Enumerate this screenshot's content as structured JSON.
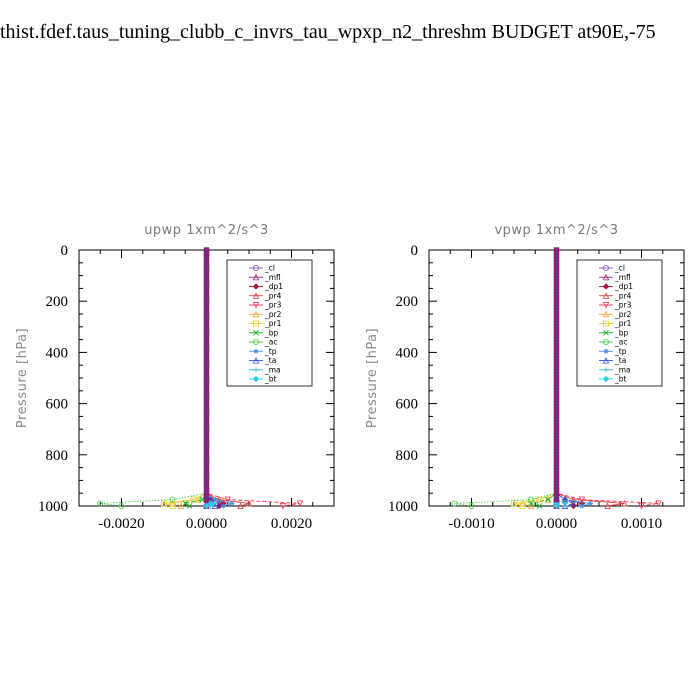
{
  "page_title": "thist.fdef.taus_tuning_clubb_c_invrs_tau_wpxp_n2_threshm  BUDGET at90E,-75",
  "legend": [
    "_cl",
    "_mfl",
    "_dp1",
    "_pr4",
    "_pr3",
    "_pr2",
    "_pr1",
    "_bp",
    "_ac",
    "_tp",
    "_ta",
    "_ma",
    "_bt"
  ],
  "series_colors": [
    "#8050b0",
    "#a01a7d",
    "#b0103a",
    "#e03c3c",
    "#ff3050",
    "#ffa030",
    "#f0d020",
    "#20b020",
    "#40d040",
    "#4090e0",
    "#3050e0",
    "#30c0e0",
    "#20d0e8"
  ],
  "chart_data": [
    {
      "type": "line",
      "title": "upwp   1xm^2/s^3",
      "ylabel": "Pressure  [hPa]",
      "xlabel": "",
      "xlim": [
        -0.003,
        0.003
      ],
      "ylim": [
        1000,
        0
      ],
      "x_ticks": [
        "-0.0020",
        "0.0000",
        "0.0020"
      ],
      "y_ticks": [
        "0",
        "200",
        "400",
        "600",
        "800",
        "1000"
      ],
      "series": [
        {
          "name": "_cl",
          "x": [
            0,
            0,
            0.0,
            0.0001,
            0.0
          ],
          "y": [
            0,
            950,
            975,
            990,
            1000
          ]
        },
        {
          "name": "_mfl",
          "x": [
            0,
            0,
            0.0,
            0.0,
            0.0
          ],
          "y": [
            0,
            950,
            975,
            990,
            1000
          ]
        },
        {
          "name": "_dp1",
          "x": [
            0,
            0,
            0.0001,
            0.0004,
            0.0003
          ],
          "y": [
            0,
            950,
            975,
            990,
            1000
          ]
        },
        {
          "name": "_pr4",
          "x": [
            0,
            0,
            0.0003,
            0.001,
            0.0008
          ],
          "y": [
            0,
            950,
            975,
            990,
            1000
          ]
        },
        {
          "name": "_pr3",
          "x": [
            0,
            0,
            0.0005,
            0.0022,
            0.0018
          ],
          "y": [
            0,
            950,
            975,
            990,
            1000
          ]
        },
        {
          "name": "_pr2",
          "x": [
            0,
            0,
            -0.0002,
            -0.0008,
            -0.0006
          ],
          "y": [
            0,
            950,
            975,
            990,
            1000
          ]
        },
        {
          "name": "_pr1",
          "x": [
            0,
            0,
            -0.0003,
            -0.001,
            -0.0008
          ],
          "y": [
            0,
            950,
            975,
            990,
            1000
          ]
        },
        {
          "name": "_bp",
          "x": [
            0,
            0,
            -0.0001,
            -0.0005,
            -0.0004
          ],
          "y": [
            0,
            950,
            975,
            990,
            1000
          ]
        },
        {
          "name": "_ac",
          "x": [
            0,
            0,
            -0.0008,
            -0.0025,
            -0.002
          ],
          "y": [
            0,
            950,
            975,
            990,
            1000
          ]
        },
        {
          "name": "_tp",
          "x": [
            0,
            0,
            0.0002,
            0.0006,
            0.0004
          ],
          "y": [
            0,
            950,
            975,
            990,
            1000
          ]
        },
        {
          "name": "_ta",
          "x": [
            0,
            0,
            0.0001,
            0.0003,
            0.0002
          ],
          "y": [
            0,
            950,
            975,
            990,
            1000
          ]
        },
        {
          "name": "_ma",
          "x": [
            0,
            0,
            0.0,
            0.0002,
            0.0001
          ],
          "y": [
            0,
            950,
            975,
            990,
            1000
          ]
        },
        {
          "name": "_bt",
          "x": [
            0,
            0,
            0.0,
            0.0001,
            0.0
          ],
          "y": [
            0,
            950,
            975,
            990,
            1000
          ]
        }
      ]
    },
    {
      "type": "line",
      "title": "vpwp   1xm^2/s^3",
      "ylabel": "Pressure  [hPa]",
      "xlabel": "",
      "xlim": [
        -0.0015,
        0.0015
      ],
      "ylim": [
        1000,
        0
      ],
      "x_ticks": [
        "-0.0010",
        "0.0000",
        "0.0010"
      ],
      "y_ticks": [
        "0",
        "200",
        "400",
        "600",
        "800",
        "1000"
      ],
      "series": [
        {
          "name": "_cl",
          "x": [
            0,
            0,
            0.0,
            0.0,
            0.0
          ],
          "y": [
            0,
            950,
            975,
            990,
            1000
          ]
        },
        {
          "name": "_mfl",
          "x": [
            0,
            0,
            0.0,
            0.0,
            0.0
          ],
          "y": [
            0,
            950,
            975,
            990,
            1000
          ]
        },
        {
          "name": "_dp1",
          "x": [
            0,
            0,
            0.0001,
            0.0003,
            0.0002
          ],
          "y": [
            0,
            950,
            975,
            990,
            1000
          ]
        },
        {
          "name": "_pr4",
          "x": [
            0,
            0,
            0.0002,
            0.0008,
            0.0006
          ],
          "y": [
            0,
            950,
            975,
            990,
            1000
          ]
        },
        {
          "name": "_pr3",
          "x": [
            0,
            0,
            0.0003,
            0.0012,
            0.001
          ],
          "y": [
            0,
            950,
            975,
            990,
            1000
          ]
        },
        {
          "name": "_pr2",
          "x": [
            0,
            0,
            -0.0001,
            -0.0004,
            -0.0003
          ],
          "y": [
            0,
            950,
            975,
            990,
            1000
          ]
        },
        {
          "name": "_pr1",
          "x": [
            0,
            0,
            -0.0002,
            -0.0005,
            -0.0004
          ],
          "y": [
            0,
            950,
            975,
            990,
            1000
          ]
        },
        {
          "name": "_bp",
          "x": [
            0,
            0,
            -0.0001,
            -0.0003,
            -0.0002
          ],
          "y": [
            0,
            950,
            975,
            990,
            1000
          ]
        },
        {
          "name": "_ac",
          "x": [
            0,
            0,
            -0.0003,
            -0.0012,
            -0.001
          ],
          "y": [
            0,
            950,
            975,
            990,
            1000
          ]
        },
        {
          "name": "_tp",
          "x": [
            0,
            0,
            0.0001,
            0.0004,
            0.0003
          ],
          "y": [
            0,
            950,
            975,
            990,
            1000
          ]
        },
        {
          "name": "_ta",
          "x": [
            0,
            0,
            0.0001,
            0.0002,
            0.0001
          ],
          "y": [
            0,
            950,
            975,
            990,
            1000
          ]
        },
        {
          "name": "_ma",
          "x": [
            0,
            0,
            0.0,
            0.0001,
            0.0001
          ],
          "y": [
            0,
            950,
            975,
            990,
            1000
          ]
        },
        {
          "name": "_bt",
          "x": [
            0,
            0,
            0.0,
            0.0,
            0.0
          ],
          "y": [
            0,
            950,
            975,
            990,
            1000
          ]
        }
      ]
    }
  ]
}
